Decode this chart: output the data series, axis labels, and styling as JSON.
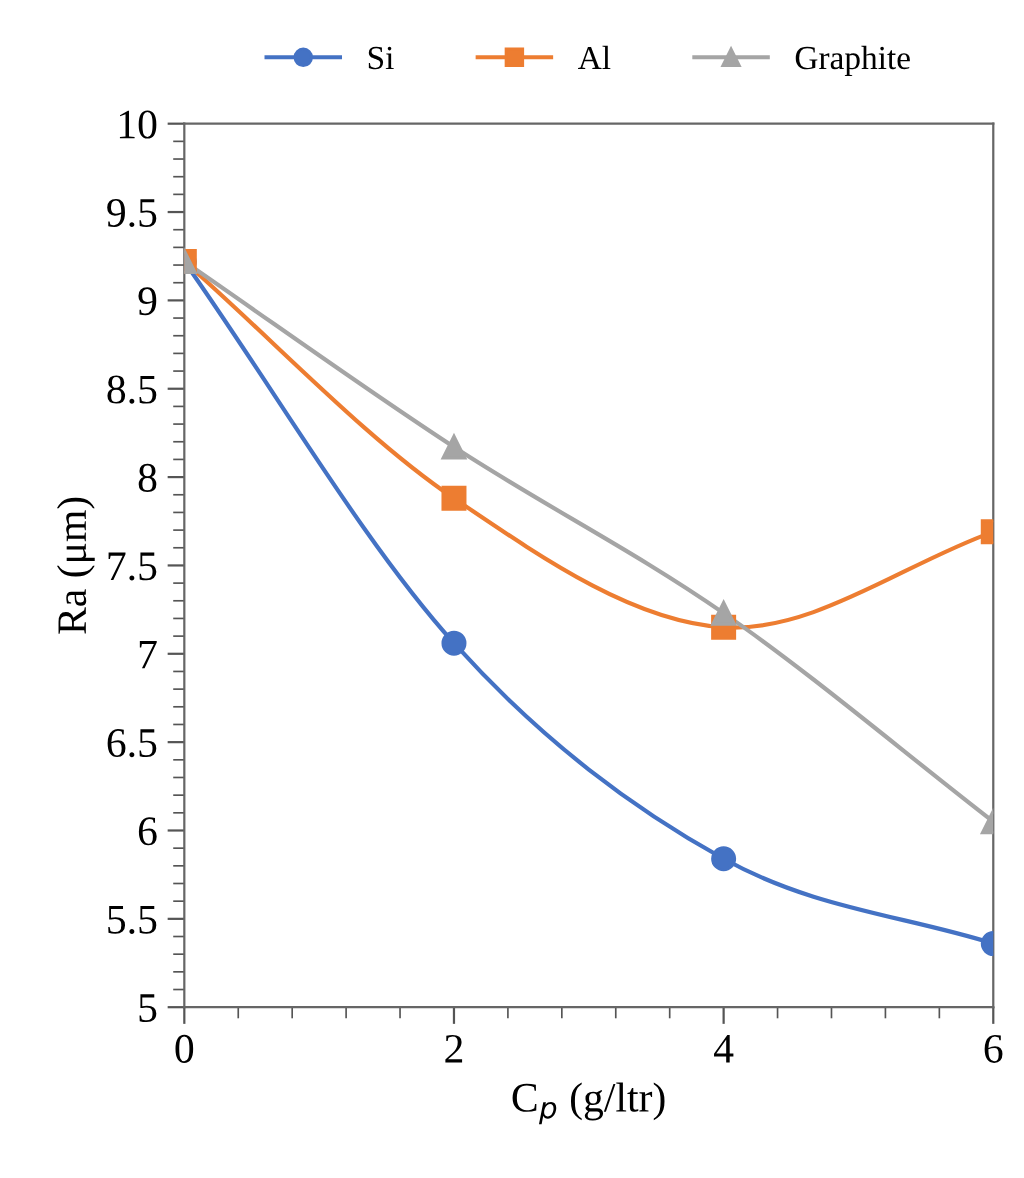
{
  "chart_data": {
    "type": "line",
    "xlabel": "C$_{p}$ (g/ltr)",
    "ylabel": "Ra (μm)",
    "x": [
      0,
      2,
      4,
      6
    ],
    "series": [
      {
        "name": "Si",
        "color": "#4472c4",
        "marker": "circle",
        "values": [
          9.22,
          7.06,
          5.84,
          5.36
        ]
      },
      {
        "name": "Al",
        "color": "#ed7d31",
        "marker": "square",
        "values": [
          9.22,
          7.88,
          7.15,
          7.69
        ]
      },
      {
        "name": "Graphite",
        "color": "#a5a5a5",
        "marker": "triangle",
        "values": [
          9.22,
          8.17,
          7.23,
          6.05
        ]
      }
    ],
    "xlim": [
      0,
      6
    ],
    "xticks": [
      0,
      2,
      4,
      6
    ],
    "ylim": [
      5,
      10
    ],
    "yticks": [
      5,
      {
        "value": 5.5,
        "label": "5.5"
      },
      6,
      {
        "value": 6.5,
        "label": "6.5"
      },
      7,
      {
        "value": 7.5,
        "label": "7.5"
      },
      8,
      {
        "value": 8.5,
        "label": "8.5"
      },
      9,
      {
        "value": 9.5,
        "label": "9.5"
      },
      10
    ],
    "grid": false,
    "legend": "top"
  }
}
